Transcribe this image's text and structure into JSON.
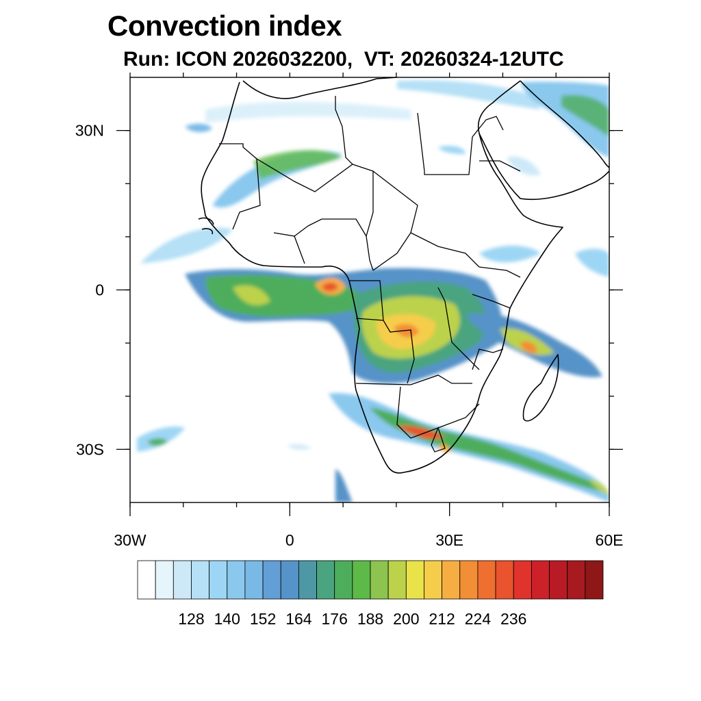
{
  "title": "Convection index",
  "subtitle": "Run: ICON 2026032200,  VT: 20260324-12UTC",
  "map": {
    "lon_range": [
      -30,
      60
    ],
    "lat_range": [
      -40,
      40
    ],
    "lon_ticks": [
      {
        "value": -30,
        "label": "30W"
      },
      {
        "value": 0,
        "label": "0"
      },
      {
        "value": 30,
        "label": "30E"
      },
      {
        "value": 60,
        "label": "60E"
      }
    ],
    "lat_ticks": [
      {
        "value": 30,
        "label": "30N"
      },
      {
        "value": 0,
        "label": "0"
      },
      {
        "value": -30,
        "label": "30S"
      }
    ],
    "minor_lon_step": 10,
    "minor_lat_step": 10
  },
  "colorbar": {
    "colors": [
      "#ffffff",
      "#e6f4fc",
      "#cde9f8",
      "#b5e0f6",
      "#9dd6f4",
      "#8ac8ee",
      "#79b9e6",
      "#629fd6",
      "#5693c8",
      "#4e98a6",
      "#49a47f",
      "#4dad5b",
      "#5db948",
      "#8cc44f",
      "#bcd24b",
      "#e9e249",
      "#f6cd4b",
      "#f6ae43",
      "#f28e36",
      "#ee6f2f",
      "#e9532d",
      "#df332c",
      "#cc2129",
      "#b91b26",
      "#a71a1f",
      "#8e1717"
    ],
    "labels": [
      "128",
      "140",
      "152",
      "164",
      "176",
      "188",
      "200",
      "212",
      "224",
      "236"
    ]
  }
}
